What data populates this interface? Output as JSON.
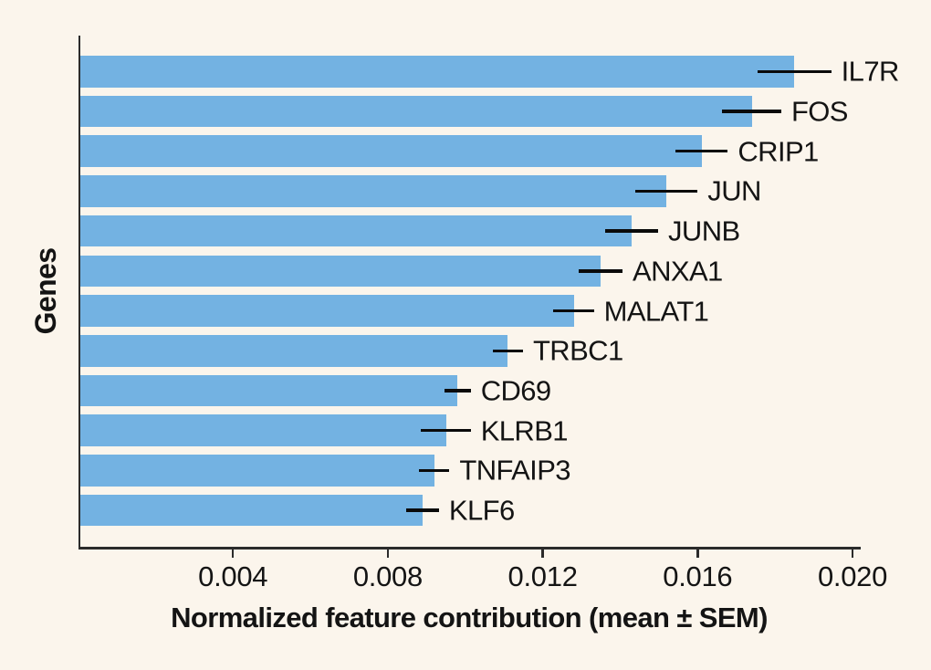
{
  "colors": {
    "background": "#FBF5EC",
    "bar": "#73B2E2",
    "spine": "#2B2B2B",
    "error_bar": "#0A0A0A",
    "text": "#141414"
  },
  "chart_data": {
    "type": "bar",
    "orientation": "horizontal",
    "title": "",
    "xlabel": "Normalized feature contribution (mean ± SEM)",
    "ylabel": "Genes",
    "categories": [
      "IL7R",
      "FOS",
      "CRIP1",
      "JUN",
      "JUNB",
      "ANXA1",
      "MALAT1",
      "TRBC1",
      "CD69",
      "KLRB1",
      "TNFAIP3",
      "KLF6"
    ],
    "series": [
      {
        "name": "mean",
        "values": [
          0.0185,
          0.0174,
          0.0161,
          0.0152,
          0.0143,
          0.0135,
          0.0128,
          0.0111,
          0.0098,
          0.0095,
          0.0092,
          0.0089
        ]
      },
      {
        "name": "sem",
        "values": [
          0.00095,
          0.00076,
          0.00068,
          0.0008,
          0.00068,
          0.00056,
          0.00052,
          0.00039,
          0.00034,
          0.00064,
          0.00039,
          0.00042
        ]
      }
    ],
    "error_bars": true,
    "bar_label_position": "right-of-error-bar",
    "xlim": [
      0,
      0.0202
    ],
    "xticks": [
      0.004,
      0.008,
      0.012,
      0.016,
      0.02
    ],
    "xtick_labels": [
      "0.004",
      "0.008",
      "0.012",
      "0.016",
      "0.020"
    ],
    "grid": false,
    "legend": false
  }
}
